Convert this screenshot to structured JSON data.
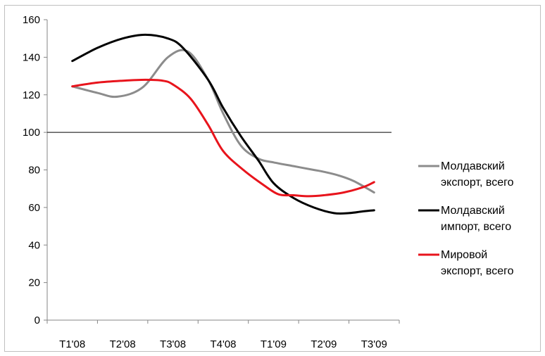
{
  "chart_data": {
    "type": "line",
    "title": "",
    "xlabel": "",
    "ylabel": "",
    "categories": [
      "T1'08",
      "T2'08",
      "T3'08",
      "T4'08",
      "T1'09",
      "T2'09",
      "T3'09"
    ],
    "ylim": [
      0,
      160
    ],
    "yticks": [
      0,
      20,
      40,
      60,
      80,
      100,
      120,
      140,
      160
    ],
    "reference_line": 100,
    "grid": false,
    "legend_position": "right",
    "series": [
      {
        "name": "Молдавский экспорт, всего",
        "color": "#8c8c8c",
        "x": [
          1,
          1.5,
          1.9,
          2.4,
          2.9,
          3.3,
          3.7,
          4.0,
          4.35,
          4.7,
          5.0,
          5.4,
          5.8,
          6.0,
          6.3,
          6.6,
          7.0
        ],
        "values": [
          124.5,
          121,
          119,
          124,
          140,
          143,
          128,
          110,
          93,
          86,
          84,
          82,
          80,
          79,
          77,
          74,
          68
        ]
      },
      {
        "name": "Молдавский импорт, всего",
        "color": "#000000",
        "x": [
          1,
          1.5,
          2.0,
          2.45,
          2.9,
          3.2,
          3.7,
          4.0,
          4.35,
          4.7,
          5.0,
          5.4,
          5.8,
          6.2,
          6.5,
          6.8,
          7.0
        ],
        "values": [
          138,
          145,
          150,
          152,
          150,
          145,
          128,
          113,
          98,
          85,
          73,
          65,
          60,
          57,
          57,
          58,
          58.5
        ]
      },
      {
        "name": "Мировой экспорт, всего",
        "color": "#e8141c",
        "x": [
          1,
          1.5,
          2.0,
          2.45,
          2.8,
          3.0,
          3.35,
          3.7,
          4.0,
          4.4,
          4.8,
          5.1,
          5.4,
          5.7,
          6.0,
          6.4,
          6.8,
          7.0
        ],
        "values": [
          124.5,
          126.5,
          127.5,
          128,
          127.5,
          125.5,
          118,
          104,
          90,
          80,
          72,
          67,
          66.5,
          66,
          66.5,
          68,
          71,
          73.5
        ]
      }
    ]
  }
}
